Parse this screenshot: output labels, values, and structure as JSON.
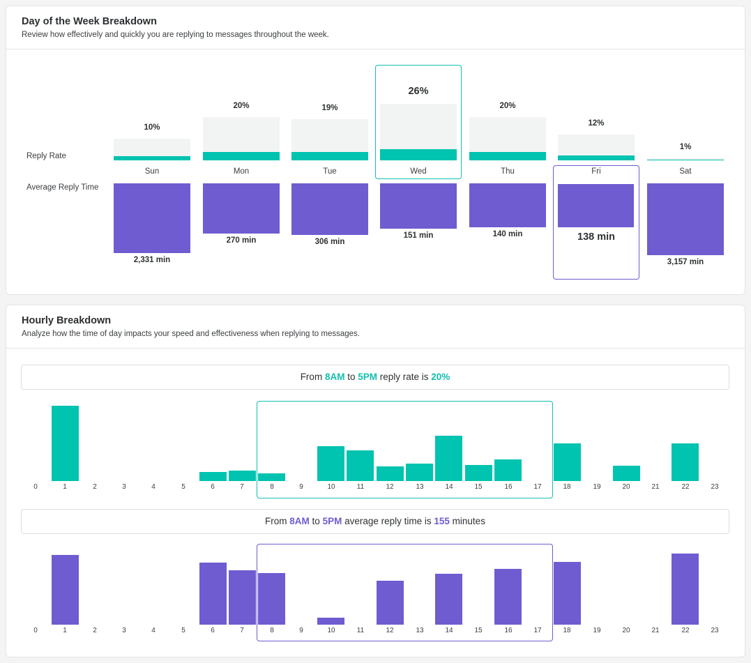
{
  "day_breakdown": {
    "title": "Day of the Week Breakdown",
    "subtitle": "Review how effectively and quickly you are replying to messages throughout the week.",
    "reply_rate_label": "Reply Rate",
    "avg_time_label": "Average Reply Time",
    "days": [
      {
        "name": "Sun",
        "rate_label": "10%",
        "rate": 10,
        "time_label": "2,331 min",
        "time": 2331
      },
      {
        "name": "Mon",
        "rate_label": "20%",
        "rate": 20,
        "time_label": "270 min",
        "time": 270
      },
      {
        "name": "Tue",
        "rate_label": "19%",
        "rate": 19,
        "time_label": "306 min",
        "time": 306
      },
      {
        "name": "Wed",
        "rate_label": "26%",
        "rate": 26,
        "time_label": "151 min",
        "time": 151
      },
      {
        "name": "Thu",
        "rate_label": "20%",
        "rate": 20,
        "time_label": "140 min",
        "time": 140
      },
      {
        "name": "Fri",
        "rate_label": "12%",
        "rate": 12,
        "time_label": "138 min",
        "time": 138
      },
      {
        "name": "Sat",
        "rate_label": "1%",
        "rate": 1,
        "time_label": "3,157 min",
        "time": 3157
      }
    ],
    "highlight_rate_day": "Wed",
    "highlight_time_day": "Fri"
  },
  "hourly_breakdown": {
    "title": "Hourly Breakdown",
    "subtitle": "Analyze how the time of day impacts your speed and effectiveness when replying to messages.",
    "rate_summary": {
      "prefix": "From ",
      "start": "8AM",
      "mid": " to ",
      "end": "5PM",
      "middle_text": " reply rate is ",
      "value": "20%",
      "suffix": ""
    },
    "time_summary": {
      "prefix": "From ",
      "start": "8AM",
      "mid": " to ",
      "end": "5PM",
      "middle_text": " average reply time is ",
      "value": "155",
      "suffix": " minutes"
    },
    "hours": [
      "0",
      "1",
      "2",
      "3",
      "4",
      "5",
      "6",
      "7",
      "8",
      "9",
      "10",
      "11",
      "12",
      "13",
      "14",
      "15",
      "16",
      "17",
      "18",
      "19",
      "20",
      "21",
      "22",
      "23"
    ]
  },
  "colors": {
    "teal": "#00c3b0",
    "purple": "#6e5cd0",
    "track": "#f2f3f3"
  },
  "chart_data": [
    {
      "type": "bar",
      "title": "",
      "categories": [
        "0",
        "1",
        "2",
        "3",
        "4",
        "5",
        "6",
        "7",
        "8",
        "9",
        "10",
        "11",
        "12",
        "13",
        "14",
        "15",
        "16",
        "17",
        "18",
        "19",
        "20",
        "21",
        "22",
        "23"
      ],
      "series": [
        {
          "values": [
            0,
            100,
            0,
            0,
            0,
            0,
            12,
            14,
            10,
            0,
            46,
            41,
            19,
            23,
            60,
            21,
            29,
            0,
            50,
            0,
            20,
            0,
            50,
            0
          ]
        }
      ],
      "ylim": [
        0,
        100
      ],
      "highlight_range": [
        "8",
        "17"
      ]
    },
    {
      "type": "bar",
      "title": "",
      "categories": [
        "0",
        "1",
        "2",
        "3",
        "4",
        "5",
        "6",
        "7",
        "8",
        "9",
        "10",
        "11",
        "12",
        "13",
        "14",
        "15",
        "16",
        "17",
        "18",
        "19",
        "20",
        "21",
        "22",
        "23"
      ],
      "series": [
        {
          "values": [
            0,
            100,
            0,
            0,
            0,
            0,
            89,
            78,
            74,
            0,
            10,
            0,
            63,
            0,
            73,
            0,
            80,
            0,
            90,
            0,
            0,
            0,
            102,
            0
          ]
        }
      ],
      "ylim": [
        0,
        105
      ],
      "highlight_range": [
        "8",
        "17"
      ]
    }
  ]
}
